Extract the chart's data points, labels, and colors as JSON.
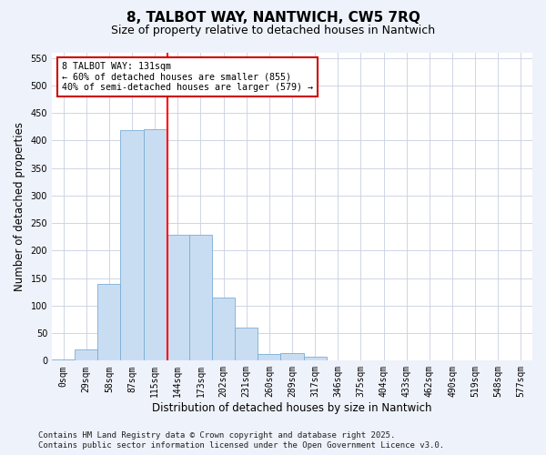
{
  "title": "8, TALBOT WAY, NANTWICH, CW5 7RQ",
  "subtitle": "Size of property relative to detached houses in Nantwich",
  "xlabel": "Distribution of detached houses by size in Nantwich",
  "ylabel": "Number of detached properties",
  "footer_line1": "Contains HM Land Registry data © Crown copyright and database right 2025.",
  "footer_line2": "Contains public sector information licensed under the Open Government Licence v3.0.",
  "bin_labels": [
    "0sqm",
    "29sqm",
    "58sqm",
    "87sqm",
    "115sqm",
    "144sqm",
    "173sqm",
    "202sqm",
    "231sqm",
    "260sqm",
    "289sqm",
    "317sqm",
    "346sqm",
    "375sqm",
    "404sqm",
    "433sqm",
    "462sqm",
    "490sqm",
    "519sqm",
    "548sqm",
    "577sqm"
  ],
  "bar_values": [
    3,
    20,
    140,
    418,
    420,
    228,
    228,
    115,
    60,
    12,
    14,
    7,
    0,
    1,
    0,
    0,
    1,
    0,
    0,
    1,
    0
  ],
  "bar_color": "#c9ddf2",
  "bar_edge_color": "#7aadd4",
  "vline_x": 4.55,
  "vline_color": "red",
  "annotation_text": "8 TALBOT WAY: 131sqm\n← 60% of detached houses are smaller (855)\n40% of semi-detached houses are larger (579) →",
  "annotation_box_color": "white",
  "annotation_box_edge": "#cc0000",
  "ylim": [
    0,
    560
  ],
  "yticks": [
    0,
    50,
    100,
    150,
    200,
    250,
    300,
    350,
    400,
    450,
    500,
    550
  ],
  "bg_color": "#eef2fa",
  "plot_bg_color": "white",
  "grid_color": "#c8cfe0",
  "title_fontsize": 11,
  "subtitle_fontsize": 9,
  "tick_fontsize": 7,
  "label_fontsize": 8.5,
  "footer_fontsize": 6.5
}
